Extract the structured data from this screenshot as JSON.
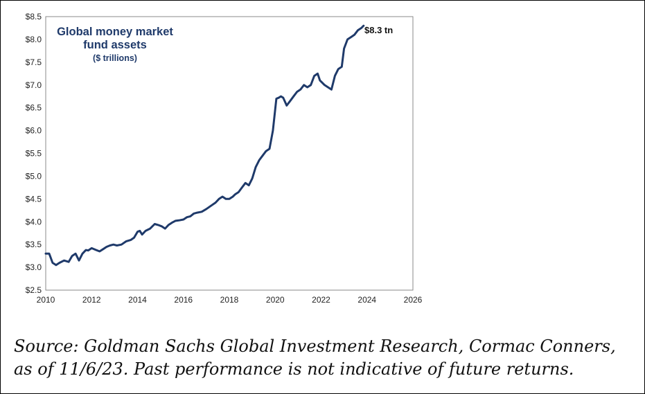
{
  "chart_data": {
    "type": "line",
    "title": "Global money market fund assets",
    "subtitle": "($ trillions)",
    "end_label": "$8.3 tn",
    "x_ticks": [
      "2010",
      "2012",
      "2014",
      "2016",
      "2018",
      "2020",
      "2022",
      "2024",
      "2026"
    ],
    "y_ticks": [
      "$2.5",
      "$3.0",
      "$3.5",
      "$4.0",
      "$4.5",
      "$5.0",
      "$5.5",
      "$6.0",
      "$6.5",
      "$7.0",
      "$7.5",
      "$8.0",
      "$8.5"
    ],
    "xlim": [
      2010,
      2026
    ],
    "ylim": [
      2.5,
      8.5
    ],
    "grid": false,
    "line_color": "#1f3a6a",
    "series": [
      {
        "x": [
          2010.0,
          2010.15,
          2010.3,
          2010.45,
          2010.6,
          2010.8,
          2011.0,
          2011.15,
          2011.3,
          2011.45,
          2011.6,
          2011.75,
          2011.85,
          2012.0,
          2012.2,
          2012.35,
          2012.5,
          2012.65,
          2012.8,
          2012.95,
          2013.1,
          2013.3,
          2013.5,
          2013.7,
          2013.85,
          2014.0,
          2014.1,
          2014.2,
          2014.35,
          2014.55,
          2014.75,
          2014.9,
          2015.05,
          2015.2,
          2015.35,
          2015.5,
          2015.65,
          2015.8,
          2016.0,
          2016.15,
          2016.3,
          2016.45,
          2016.6,
          2016.8,
          2017.0,
          2017.2,
          2017.4,
          2017.55,
          2017.7,
          2017.85,
          2018.0,
          2018.15,
          2018.25,
          2018.4,
          2018.55,
          2018.7,
          2018.85,
          2019.0,
          2019.15,
          2019.3,
          2019.45,
          2019.6,
          2019.75,
          2019.9,
          2020.05,
          2020.15,
          2020.25,
          2020.35,
          2020.5,
          2020.65,
          2020.8,
          2020.95,
          2021.1,
          2021.25,
          2021.4,
          2021.55,
          2021.7,
          2021.85,
          2021.95,
          2022.05,
          2022.15,
          2022.3,
          2022.45,
          2022.6,
          2022.75,
          2022.9,
          2023.0,
          2023.15,
          2023.3,
          2023.45,
          2023.6,
          2023.75,
          2023.85
        ],
        "y": [
          3.3,
          3.3,
          3.1,
          3.05,
          3.1,
          3.15,
          3.12,
          3.25,
          3.3,
          3.15,
          3.3,
          3.38,
          3.37,
          3.42,
          3.38,
          3.35,
          3.4,
          3.45,
          3.48,
          3.5,
          3.48,
          3.5,
          3.57,
          3.6,
          3.65,
          3.78,
          3.8,
          3.72,
          3.8,
          3.85,
          3.95,
          3.93,
          3.9,
          3.85,
          3.93,
          3.98,
          4.02,
          4.03,
          4.05,
          4.1,
          4.12,
          4.18,
          4.2,
          4.22,
          4.28,
          4.35,
          4.42,
          4.5,
          4.55,
          4.5,
          4.5,
          4.55,
          4.6,
          4.65,
          4.75,
          4.85,
          4.8,
          4.95,
          5.2,
          5.35,
          5.45,
          5.55,
          5.6,
          6.0,
          6.7,
          6.72,
          6.75,
          6.72,
          6.55,
          6.65,
          6.75,
          6.85,
          6.9,
          7.0,
          6.95,
          7.0,
          7.2,
          7.25,
          7.1,
          7.05,
          7.0,
          6.95,
          6.9,
          7.2,
          7.35,
          7.4,
          7.8,
          8.0,
          8.05,
          8.1,
          8.2,
          8.25,
          8.3
        ]
      }
    ]
  },
  "source_note": "Source: Goldman Sachs Global Investment Research, Cormac Conners,  as of 11/6/23. Past performance is not indicative of future returns."
}
